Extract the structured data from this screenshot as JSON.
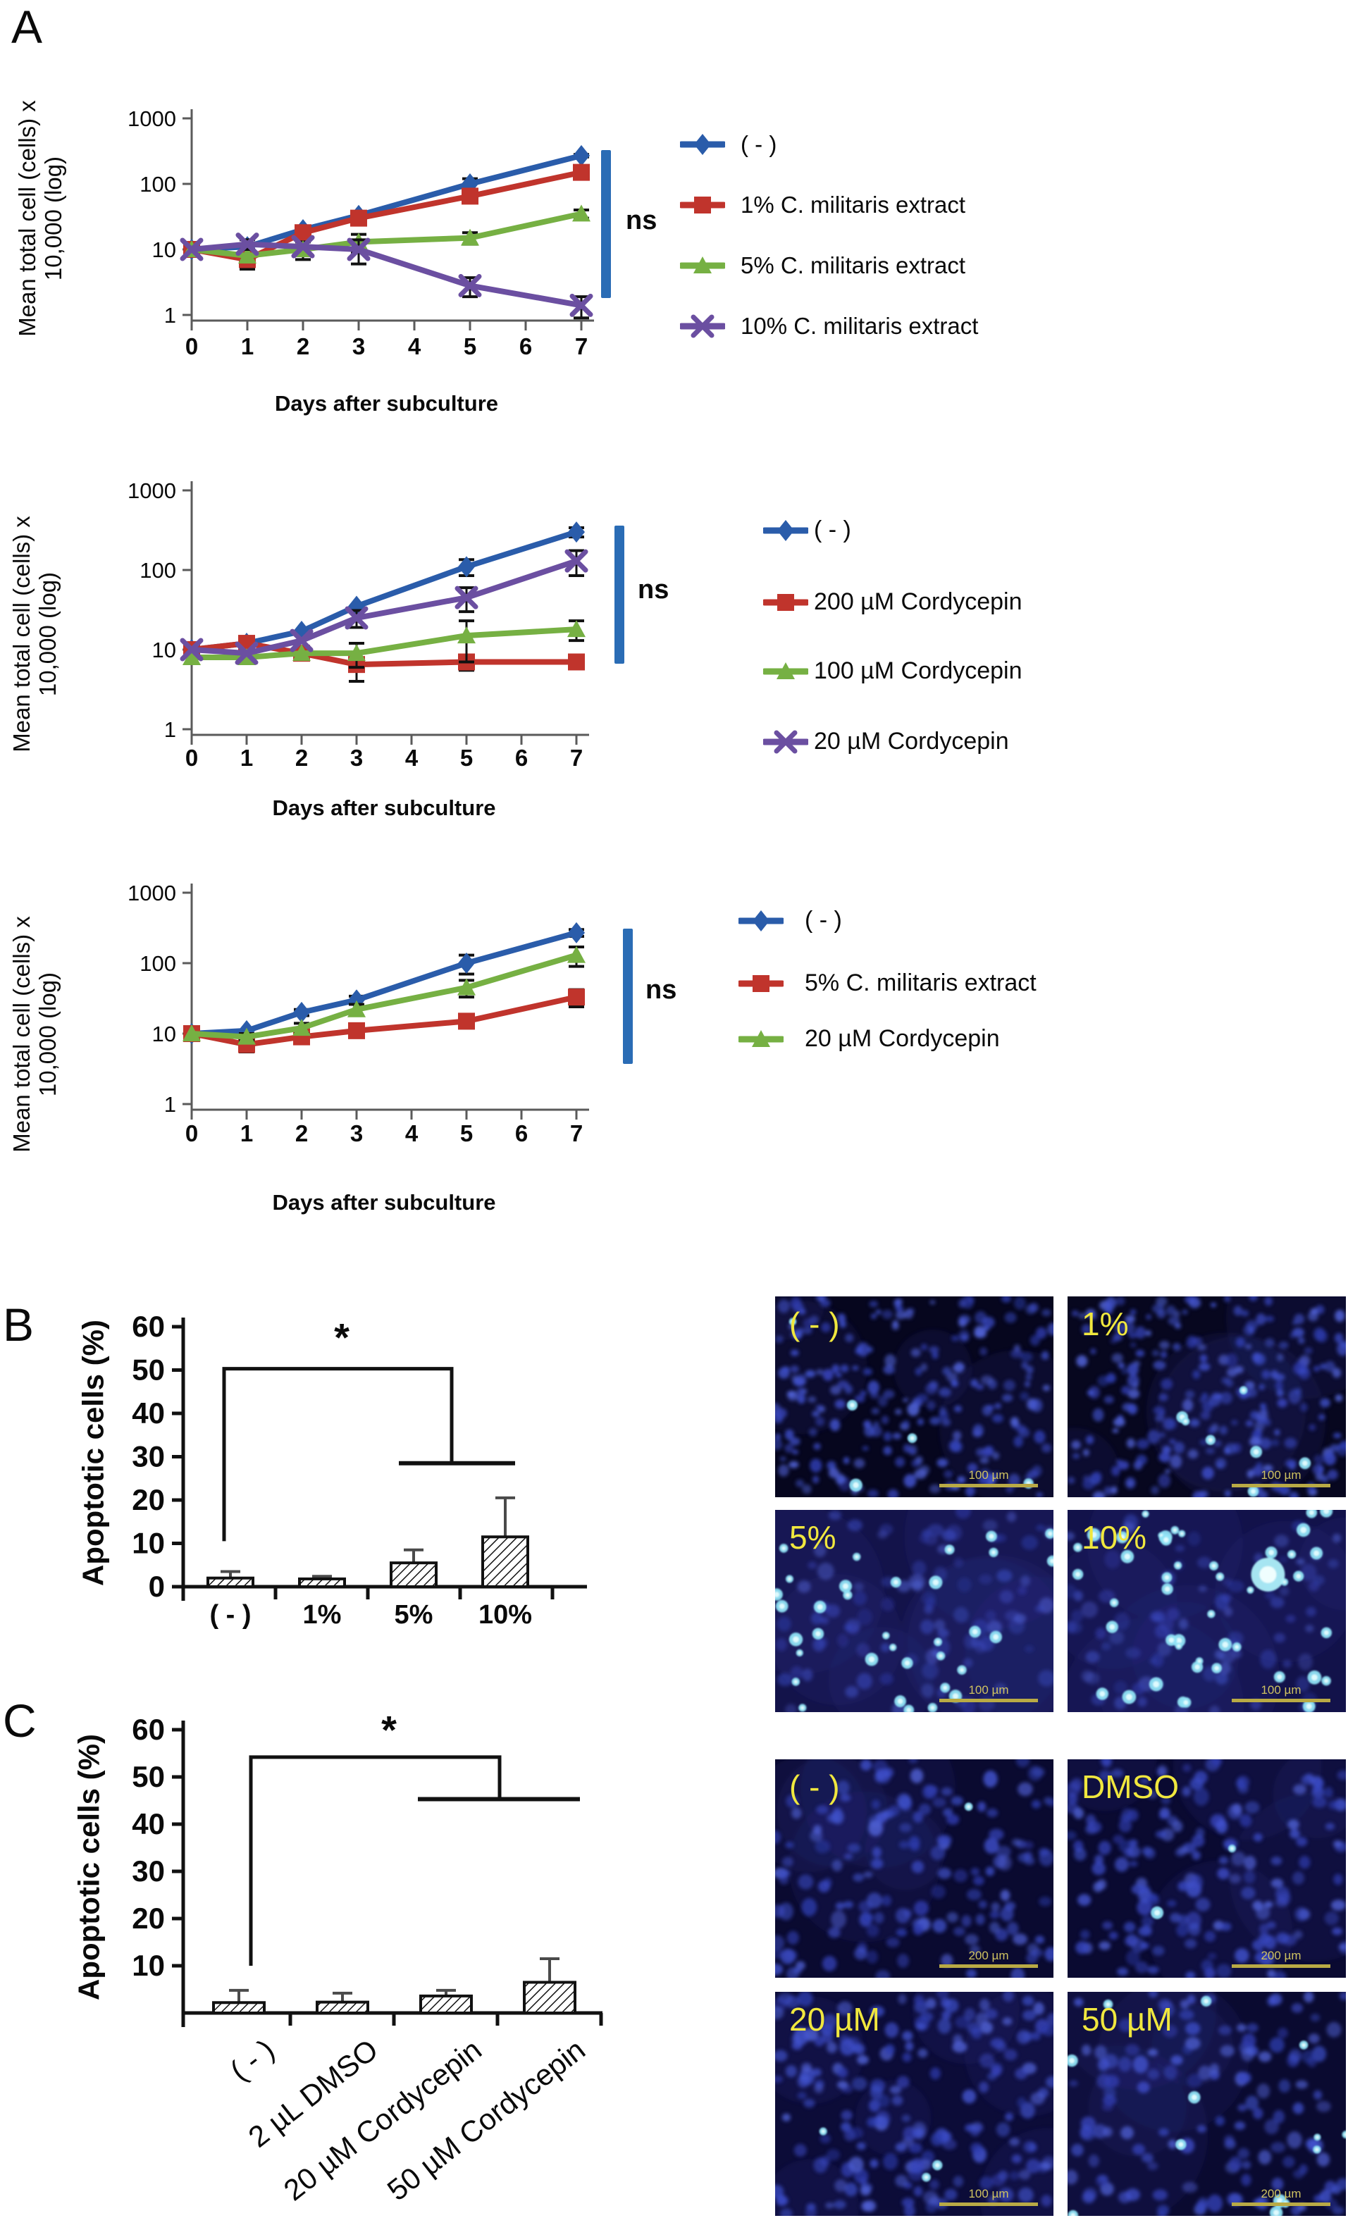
{
  "figure": {
    "panel_a_label": "A",
    "panel_b_label": "B",
    "panel_c_label": "C"
  },
  "colors": {
    "blue": "#2a5caa",
    "red": "#c0342c",
    "green": "#76b043",
    "purple": "#6b4fa1",
    "ns_bar": "#2a6cb5",
    "axis_gray": "#5a5a5a",
    "axis_black": "#111111",
    "micro_label": "#f0e73e",
    "scalebar": "#b9aa45"
  },
  "chart_data": {
    "line_charts": [
      {
        "id": "a1",
        "type": "line",
        "ylabel_line1": "Mean total cell (cells) x",
        "ylabel_line2": "10,000 (log)",
        "xlabel": "Days after subculture",
        "ns": "ns",
        "ylog": true,
        "ylim": [
          1,
          1000
        ],
        "x": [
          0,
          1,
          2,
          3,
          5,
          7
        ],
        "xticks": [
          "0",
          "1",
          "2",
          "3",
          "4",
          "5",
          "6",
          "7"
        ],
        "yticks": [
          "1000",
          "100",
          "10",
          "1"
        ],
        "series": [
          {
            "name": "( - )",
            "color_key": "blue",
            "marker": "diamond",
            "values": [
              10,
              11,
              20,
              33,
              100,
              270
            ],
            "err": [
              0,
              0,
              0,
              0,
              20,
              12
            ]
          },
          {
            "name": "1% C. militaris extract",
            "color_key": "red",
            "marker": "square",
            "values": [
              10,
              7,
              18,
              30,
              65,
              150
            ],
            "err": [
              0,
              2,
              0,
              0,
              8,
              0
            ]
          },
          {
            "name": "5% C. militaris extract",
            "color_key": "green",
            "marker": "triangle",
            "values": [
              10,
              8,
              10,
              13,
              15,
              35
            ],
            "err": [
              0,
              0,
              3,
              4,
              3,
              5
            ]
          },
          {
            "name": "10% C. militaris extract",
            "color_key": "purple",
            "marker": "xmark",
            "values": [
              10,
              12,
              11,
              10,
              2.8,
              1.4
            ],
            "err": [
              0,
              2,
              0,
              4,
              0.9,
              0.5
            ]
          }
        ]
      },
      {
        "id": "a2",
        "type": "line",
        "ylabel_line1": "Mean total cell (cells) x",
        "ylabel_line2": "10,000 (log)",
        "xlabel": "Days after subculture",
        "ns": "ns",
        "ylog": true,
        "ylim": [
          1,
          1000
        ],
        "x": [
          0,
          1,
          2,
          3,
          5,
          7
        ],
        "xticks": [
          "0",
          "1",
          "2",
          "3",
          "4",
          "5",
          "6",
          "7"
        ],
        "yticks": [
          "1000",
          "100",
          "10",
          "1"
        ],
        "series": [
          {
            "name": "( - )",
            "color_key": "blue",
            "marker": "diamond",
            "values": [
              10,
              12,
              17,
              35,
              110,
              300
            ],
            "err": [
              0,
              0,
              0,
              0,
              25,
              40
            ]
          },
          {
            "name": "200 µM Cordycepin",
            "color_key": "red",
            "marker": "square",
            "values": [
              10,
              12,
              9,
              6.5,
              7,
              7
            ],
            "err": [
              0,
              2,
              0,
              2.5,
              1.5,
              1
            ]
          },
          {
            "name": "100 µM Cordycepin",
            "color_key": "green",
            "marker": "triangle",
            "values": [
              8,
              8,
              9,
              9,
              15,
              18
            ],
            "err": [
              0,
              0,
              0,
              3,
              8,
              5
            ]
          },
          {
            "name": "20 µM Cordycepin",
            "color_key": "purple",
            "marker": "xmark",
            "values": [
              10,
              9,
              13,
              25,
              45,
              130
            ],
            "err": [
              0,
              0,
              0,
              6,
              15,
              45
            ]
          }
        ]
      },
      {
        "id": "a3",
        "type": "line",
        "ylabel_line1": "Mean total cell (cells) x",
        "ylabel_line2": "10,000 (log)",
        "xlabel": "Days after subculture",
        "ns": "ns",
        "ylog": true,
        "ylim": [
          1,
          1000
        ],
        "x": [
          0,
          1,
          2,
          3,
          5,
          7
        ],
        "xticks": [
          "0",
          "1",
          "2",
          "3",
          "4",
          "5",
          "6",
          "7"
        ],
        "yticks": [
          "1000",
          "100",
          "10",
          "1"
        ],
        "series": [
          {
            "name": "( - )",
            "color_key": "blue",
            "marker": "diamond",
            "values": [
              10,
              11,
              20,
              30,
              100,
              270
            ],
            "err": [
              0,
              0,
              2,
              4,
              30,
              30
            ]
          },
          {
            "name": "5% C. militaris extract",
            "color_key": "red",
            "marker": "square",
            "values": [
              10,
              7,
              9,
              11,
              15,
              33
            ],
            "err": [
              0,
              1.5,
              1,
              2,
              3,
              9
            ]
          },
          {
            "name": "20 µM Cordycepin",
            "color_key": "green",
            "marker": "triangle",
            "values": [
              10,
              9,
              12,
              22,
              45,
              130
            ],
            "err": [
              0,
              1,
              2,
              4,
              12,
              40
            ]
          }
        ]
      }
    ],
    "bar_charts": [
      {
        "id": "b",
        "type": "bar",
        "ylabel": "Apoptotic cells (%)",
        "yticks": [
          0,
          10,
          20,
          30,
          40,
          50,
          60
        ],
        "ylim": [
          0,
          60
        ],
        "categories": [
          "( - )",
          "1%",
          "5%",
          "10%"
        ],
        "values": [
          2.0,
          1.8,
          5.5,
          11.5
        ],
        "errors": [
          1.5,
          0.6,
          3.0,
          9.0
        ],
        "sig": "*"
      },
      {
        "id": "c",
        "type": "bar",
        "ylabel": "Apoptotic cells (%)",
        "yticks": [
          10,
          20,
          30,
          40,
          50,
          60
        ],
        "ylim": [
          0,
          60
        ],
        "categories": [
          "( - )",
          "2 µL DMSO",
          "20 µM Cordycepin",
          "50 µM Cordycepin"
        ],
        "values": [
          2.2,
          2.3,
          3.6,
          6.5
        ],
        "errors": [
          2.6,
          1.9,
          1.2,
          5.0
        ],
        "sig": "*"
      }
    ]
  },
  "micrographs": {
    "b": [
      {
        "label": "( - )",
        "scalebar": "100 µm"
      },
      {
        "label": "1%",
        "scalebar": "100 µm"
      },
      {
        "label": "5%",
        "scalebar": "100 µm"
      },
      {
        "label": "10%",
        "scalebar": "100 µm"
      }
    ],
    "c": [
      {
        "label": "( - )",
        "scalebar": "200 µm"
      },
      {
        "label": "DMSO",
        "scalebar": "200 µm"
      },
      {
        "label": "20 µM",
        "scalebar": "100 µm"
      },
      {
        "label": "50 µM",
        "scalebar": "200 µm"
      }
    ]
  }
}
